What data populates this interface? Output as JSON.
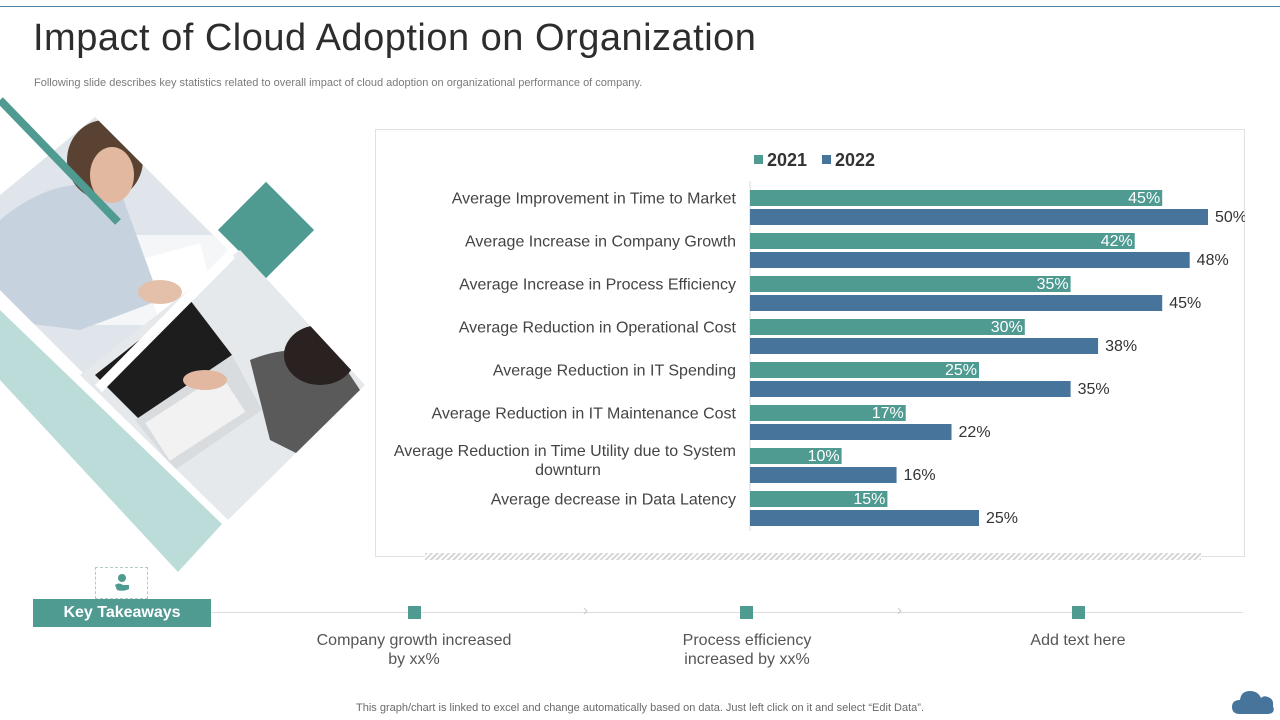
{
  "title": "Impact of Cloud Adoption on Organization",
  "subtitle": "Following slide describes key statistics related to overall impact of cloud adoption on organizational performance of company.",
  "colors": {
    "series_2021": "#4f9a91",
    "series_2022": "#46749b",
    "accent": "#4f9a91"
  },
  "chart_data": {
    "type": "bar",
    "orientation": "horizontal",
    "categories": [
      [
        "Average Improvement in Time to Market"
      ],
      [
        "Average Increase in Company Growth"
      ],
      [
        "Average Increase in Process Efficiency"
      ],
      [
        "Average Reduction in Operational Cost"
      ],
      [
        "Average Reduction in IT Spending"
      ],
      [
        "Average Reduction in IT Maintenance Cost"
      ],
      [
        "Average Reduction in Time Utility due to System",
        "downturn"
      ],
      [
        "Average decrease in Data Latency"
      ]
    ],
    "series": [
      {
        "name": "2021",
        "values": [
          45,
          42,
          35,
          30,
          25,
          17,
          10,
          15
        ],
        "labels": [
          "45%",
          "42%",
          "35%",
          "30%",
          "25%",
          "17%",
          "10%",
          "15%"
        ]
      },
      {
        "name": "2022",
        "values": [
          50,
          48,
          45,
          38,
          35,
          22,
          16,
          25
        ],
        "labels": [
          "50%",
          "48%",
          "45%",
          "38%",
          "35%",
          "22%",
          "16%",
          "25%"
        ]
      }
    ],
    "legend": "top-center",
    "xlim": [
      0,
      50
    ],
    "grid": false
  },
  "takeaways": {
    "label": "Key Takeaways",
    "items": [
      {
        "line1": "Company growth increased",
        "line2": "by xx%"
      },
      {
        "line1": "Process efficiency",
        "line2": "increased by xx%"
      },
      {
        "line1": "Add text here",
        "line2": ""
      }
    ]
  },
  "footer": "This graph/chart is linked to excel and change automatically based on data. Just left click on it and select “Edit Data”.",
  "icons": {
    "takeaway_icon": "hand-coin-icon",
    "corner_icon": "cloud-icon"
  }
}
